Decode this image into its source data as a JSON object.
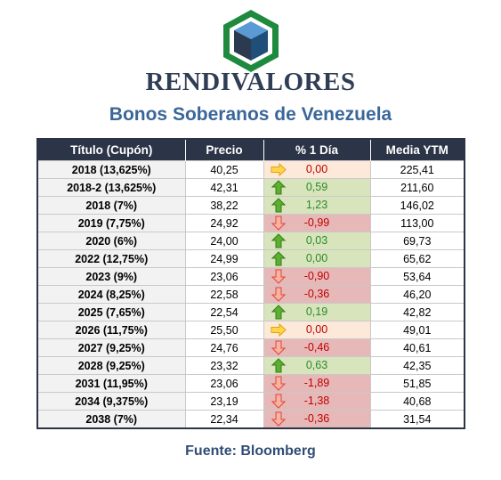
{
  "brand": "RENDIVALORES",
  "subtitle": "Bonos Soberanos de Venezuela",
  "source": "Fuente: Bloomberg",
  "colors": {
    "header_bg": "#2c3447",
    "up_bg": "#d8e4bc",
    "down_bg": "#e6b8b7",
    "flat_bg": "#fde9d9",
    "up_text": "#2a8a2a",
    "down_text": "#c00000",
    "logo_green": "#1e8a3e",
    "logo_blue": "#1f4e79"
  },
  "table": {
    "headers": [
      "Título (Cupón)",
      "Precio",
      "% 1 Día",
      "Media YTM"
    ],
    "rows": [
      {
        "title": "2018 (13,625%)",
        "price": "40,25",
        "change": "0,00",
        "direction": "flat",
        "icon": "arrow-right-icon",
        "ytm": "225,41"
      },
      {
        "title": "2018-2 (13,625%)",
        "price": "42,31",
        "change": "0,59",
        "direction": "up",
        "icon": "arrow-up-icon",
        "ytm": "211,60"
      },
      {
        "title": "2018 (7%)",
        "price": "38,22",
        "change": "1,23",
        "direction": "up",
        "icon": "arrow-up-icon",
        "ytm": "146,02"
      },
      {
        "title": "2019 (7,75%)",
        "price": "24,92",
        "change": "-0,99",
        "direction": "down",
        "icon": "arrow-down-icon",
        "ytm": "113,00"
      },
      {
        "title": "2020 (6%)",
        "price": "24,00",
        "change": "0,03",
        "direction": "up",
        "icon": "arrow-up-icon",
        "ytm": "69,73"
      },
      {
        "title": "2022 (12,75%)",
        "price": "24,99",
        "change": "0,00",
        "direction": "up",
        "icon": "arrow-up-icon",
        "ytm": "65,62"
      },
      {
        "title": "2023 (9%)",
        "price": "23,06",
        "change": "-0,90",
        "direction": "down",
        "icon": "arrow-down-icon",
        "ytm": "53,64"
      },
      {
        "title": "2024 (8,25%)",
        "price": "22,58",
        "change": "-0,36",
        "direction": "down",
        "icon": "arrow-down-icon",
        "ytm": "46,20"
      },
      {
        "title": "2025 (7,65%)",
        "price": "22,54",
        "change": "0,19",
        "direction": "up",
        "icon": "arrow-up-icon",
        "ytm": "42,82"
      },
      {
        "title": "2026 (11,75%)",
        "price": "25,50",
        "change": "0,00",
        "direction": "flat",
        "icon": "arrow-right-icon",
        "ytm": "49,01"
      },
      {
        "title": "2027 (9,25%)",
        "price": "24,76",
        "change": "-0,46",
        "direction": "down",
        "icon": "arrow-down-icon",
        "ytm": "40,61"
      },
      {
        "title": "2028 (9,25%)",
        "price": "23,32",
        "change": "0,63",
        "direction": "up",
        "icon": "arrow-up-icon",
        "ytm": "42,35"
      },
      {
        "title": "2031 (11,95%)",
        "price": "23,06",
        "change": "-1,89",
        "direction": "down",
        "icon": "arrow-down-icon",
        "ytm": "51,85"
      },
      {
        "title": "2034 (9,375%)",
        "price": "23,19",
        "change": "-1,38",
        "direction": "down",
        "icon": "arrow-down-icon",
        "ytm": "40,68"
      },
      {
        "title": "2038 (7%)",
        "price": "22,34",
        "change": "-0,36",
        "direction": "down",
        "icon": "arrow-down-icon",
        "ytm": "31,54"
      }
    ]
  }
}
